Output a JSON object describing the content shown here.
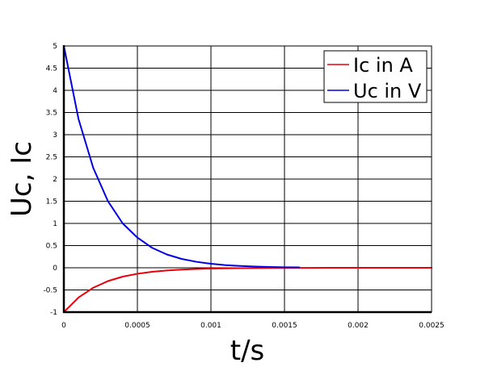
{
  "chart_data": {
    "type": "line",
    "xlabel": "t/s",
    "ylabel": "Uc, Ic",
    "xlim": [
      0,
      0.0025
    ],
    "ylim": [
      -1,
      5
    ],
    "grid": true,
    "legend_position": "top-right",
    "x_ticks": [
      "0",
      "0.0005",
      "0.001",
      "0.0015",
      "0.002",
      "0.0025"
    ],
    "y_ticks": [
      "-1",
      "-0.5",
      "0",
      "0.5",
      "1",
      "1.5",
      "2",
      "2.5",
      "3",
      "3.5",
      "4",
      "4.5",
      "5"
    ],
    "series": [
      {
        "name": "Ic in A",
        "color": "#e8000b",
        "x": [
          0,
          0.0001,
          0.0002,
          0.0003,
          0.0004,
          0.0005,
          0.0006,
          0.0007,
          0.0008,
          0.0009,
          0.001,
          0.0012,
          0.0014,
          0.0016,
          0.0018,
          0.002,
          0.0022,
          0.0025
        ],
        "y": [
          -1,
          -0.67,
          -0.45,
          -0.3,
          -0.2,
          -0.135,
          -0.09,
          -0.061,
          -0.041,
          -0.027,
          -0.018,
          -0.008,
          -0.004,
          -0.002,
          -0.001,
          0,
          0,
          0
        ]
      },
      {
        "name": "Uc in V",
        "color": "#0000e0",
        "x": [
          0,
          0.0001,
          0.0002,
          0.0003,
          0.0004,
          0.0005,
          0.0006,
          0.0007,
          0.0008,
          0.0009,
          0.001,
          0.0011,
          0.0012,
          0.0013,
          0.0014,
          0.0015,
          0.0016
        ],
        "y": [
          5,
          3.35,
          2.25,
          1.5,
          1.0,
          0.68,
          0.45,
          0.3,
          0.2,
          0.135,
          0.09,
          0.06,
          0.04,
          0.027,
          0.018,
          0.012,
          0.008
        ]
      }
    ]
  }
}
